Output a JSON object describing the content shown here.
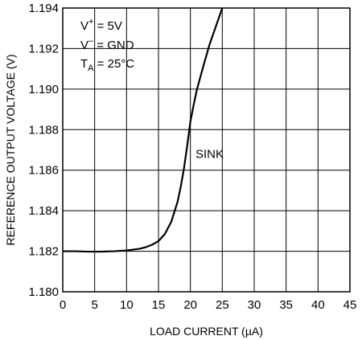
{
  "chart_data": {
    "type": "line",
    "title": "",
    "xlabel": "LOAD CURRENT (µA)",
    "ylabel": "REFERENCE OUTPUT VOLTAGE (V)",
    "xlim": [
      0,
      45
    ],
    "ylim": [
      1.18,
      1.194
    ],
    "x_ticks": [
      0,
      5,
      10,
      15,
      20,
      25,
      30,
      35,
      40,
      45
    ],
    "x_tick_labels": [
      "0",
      "5",
      "10",
      "15",
      "20",
      "25",
      "30",
      "35",
      "40",
      "45"
    ],
    "y_ticks": [
      1.18,
      1.182,
      1.184,
      1.186,
      1.188,
      1.19,
      1.192,
      1.194
    ],
    "y_tick_labels": [
      "1.180",
      "1.182",
      "1.184",
      "1.186",
      "1.188",
      "1.190",
      "1.192",
      "1.194"
    ],
    "grid": true,
    "conditions": {
      "vplus": {
        "sym": "V",
        "sup": "+",
        "rest": " = 5V"
      },
      "vminus": {
        "sym": "V",
        "sup": "–",
        "rest": " = GND"
      },
      "ta": {
        "sym": "T",
        "sub": "A",
        "rest": " = 25°C"
      }
    },
    "series": [
      {
        "label": "SINK",
        "label_x": 20.8,
        "label_y": 1.1866,
        "x": [
          0,
          2,
          4,
          6,
          8,
          10,
          12,
          13,
          14,
          15,
          16,
          17,
          18,
          18.5,
          19,
          19.5,
          20,
          20.5,
          21,
          22,
          23,
          24,
          25
        ],
        "y": [
          1.182,
          1.182,
          1.18198,
          1.18198,
          1.182,
          1.18204,
          1.18212,
          1.1822,
          1.18232,
          1.1825,
          1.18285,
          1.18345,
          1.18445,
          1.1852,
          1.1861,
          1.1872,
          1.1884,
          1.1892,
          1.18995,
          1.1911,
          1.1922,
          1.1931,
          1.194
        ]
      }
    ]
  }
}
